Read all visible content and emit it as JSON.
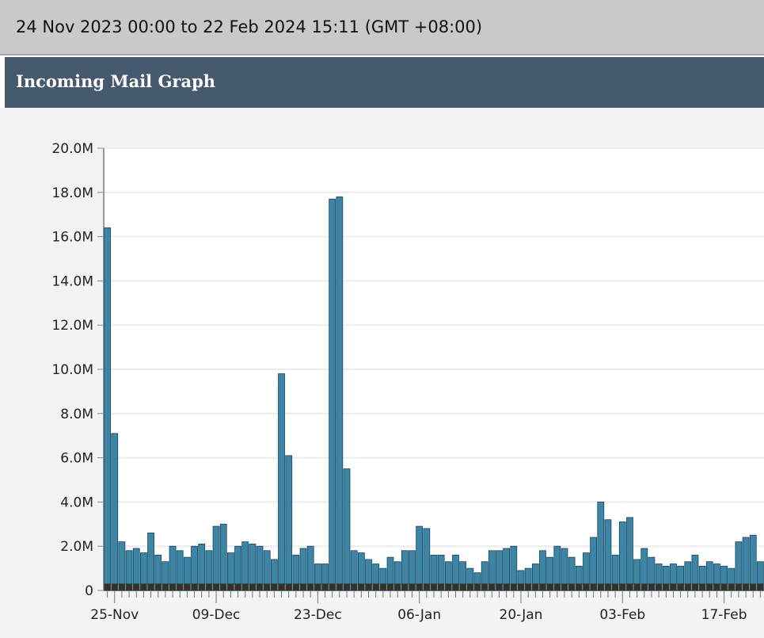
{
  "header": {
    "range": "24 Nov 2023 00:00 to 22 Feb 2024 15:11 (GMT +08:00)",
    "title": "Incoming Mail Graph"
  },
  "chart_data": {
    "type": "bar",
    "stacked": true,
    "grid": true,
    "categories": [
      null,
      "25-Nov",
      null,
      null,
      null,
      null,
      null,
      null,
      null,
      null,
      null,
      null,
      null,
      null,
      null,
      "09-Dec",
      null,
      null,
      null,
      null,
      null,
      null,
      null,
      null,
      null,
      null,
      null,
      null,
      null,
      "23-Dec",
      null,
      null,
      null,
      null,
      null,
      null,
      null,
      null,
      null,
      null,
      null,
      null,
      null,
      "06-Jan",
      null,
      null,
      null,
      null,
      null,
      null,
      null,
      null,
      null,
      null,
      null,
      null,
      null,
      "20-Jan",
      null,
      null,
      null,
      null,
      null,
      null,
      null,
      null,
      null,
      null,
      null,
      null,
      null,
      "03-Feb",
      null,
      null,
      null,
      null,
      null,
      null,
      null,
      null,
      null,
      null,
      null,
      null,
      null,
      "17-Feb",
      null,
      null,
      null,
      null,
      null
    ],
    "series": [
      {
        "color": "#3b2f22",
        "values": [
          0.3,
          0.3,
          0.3,
          0.3,
          0.3,
          0.3,
          0.3,
          0.3,
          0.3,
          0.3,
          0.3,
          0.3,
          0.3,
          0.3,
          0.3,
          0.3,
          0.3,
          0.3,
          0.3,
          0.3,
          0.3,
          0.3,
          0.3,
          0.3,
          0.3,
          0.3,
          0.3,
          0.3,
          0.3,
          0.3,
          0.3,
          0.3,
          0.3,
          0.3,
          0.3,
          0.3,
          0.3,
          0.3,
          0.3,
          0.3,
          0.3,
          0.3,
          0.3,
          0.3,
          0.3,
          0.3,
          0.3,
          0.3,
          0.3,
          0.3,
          0.3,
          0.3,
          0.3,
          0.3,
          0.3,
          0.3,
          0.3,
          0.3,
          0.3,
          0.3,
          0.3,
          0.3,
          0.3,
          0.3,
          0.3,
          0.3,
          0.3,
          0.3,
          0.3,
          0.3,
          0.3,
          0.3,
          0.3,
          0.3,
          0.3,
          0.3,
          0.3,
          0.3,
          0.3,
          0.3,
          0.3,
          0.3,
          0.3,
          0.3,
          0.3,
          0.3,
          0.3,
          0.3,
          0.3,
          0.3,
          0.3
        ]
      },
      {
        "color": "#3a86a8",
        "values": [
          16.1,
          6.8,
          1.9,
          1.5,
          1.6,
          1.4,
          2.3,
          1.3,
          1.0,
          1.7,
          1.5,
          1.2,
          1.7,
          1.8,
          1.5,
          2.6,
          2.7,
          1.4,
          1.7,
          1.9,
          1.8,
          1.7,
          1.5,
          1.1,
          9.5,
          5.8,
          1.3,
          1.6,
          1.7,
          0.9,
          0.9,
          17.4,
          17.5,
          5.2,
          1.5,
          1.4,
          1.1,
          0.9,
          0.7,
          1.2,
          1.0,
          1.5,
          1.5,
          2.6,
          2.5,
          1.3,
          1.3,
          1.0,
          1.3,
          1.0,
          0.7,
          0.5,
          1.0,
          1.5,
          1.5,
          1.6,
          1.7,
          0.6,
          0.7,
          0.9,
          1.5,
          1.2,
          1.7,
          1.6,
          1.2,
          0.8,
          1.4,
          2.1,
          3.7,
          2.9,
          1.3,
          2.8,
          3.0,
          1.1,
          1.6,
          1.2,
          0.9,
          0.8,
          0.9,
          0.8,
          1.0,
          1.3,
          0.8,
          1.0,
          0.9,
          0.8,
          0.7,
          1.9,
          2.1,
          2.2,
          1.0
        ]
      }
    ],
    "ylim": [
      0,
      20
    ],
    "yticks": [
      0,
      {
        "value": 2,
        "label": "2.0M"
      },
      {
        "value": 4,
        "label": "4.0M"
      },
      {
        "value": 6,
        "label": "6.0M"
      },
      {
        "value": 8,
        "label": "8.0M"
      },
      {
        "value": 10,
        "label": "10.0M"
      },
      {
        "value": 12,
        "label": "12.0M"
      },
      {
        "value": 14,
        "label": "14.0M"
      },
      {
        "value": 16,
        "label": "16.0M"
      },
      {
        "value": 18,
        "label": "18.0M"
      },
      {
        "value": 20,
        "label": "20.0M"
      }
    ]
  }
}
